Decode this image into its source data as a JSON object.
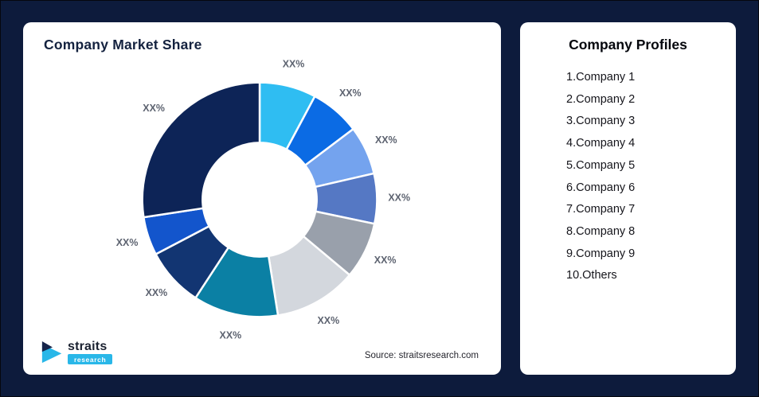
{
  "page": {
    "background": "#0D1B3C"
  },
  "chart_card": {
    "title": "Company Market Share",
    "source": "Source: straitsresearch.com",
    "logo": {
      "name": "straits",
      "sub": "research"
    }
  },
  "profiles_card": {
    "title": "Company Profiles",
    "items": [
      "1.Company 1",
      "2.Company 2",
      "3.Company 3",
      "4.Company 4",
      "5.Company 5",
      "6.Company 6",
      "7.Company 7",
      "8.Company 8",
      "9.Company 9",
      "10.Others"
    ]
  },
  "chart_data": {
    "type": "pie",
    "subtype": "donut",
    "title": "Company Market Share",
    "categories": [
      "Company 1",
      "Company 2",
      "Company 3",
      "Company 4",
      "Company 5",
      "Company 6",
      "Company 7",
      "Company 8",
      "Company 9",
      "Others"
    ],
    "values": [
      7.8,
      6.9,
      6.7,
      6.9,
      7.8,
      11.4,
      11.7,
      8.1,
      5.3,
      27.4
    ],
    "data_labels": [
      "XX%",
      "XX%",
      "XX%",
      "XX%",
      "XX%",
      "XX%",
      "XX%",
      "XX%",
      "XX%",
      "XX%"
    ],
    "colors": [
      "#2FBDF2",
      "#0B6BE4",
      "#74A3EE",
      "#5578C4",
      "#99A0AB",
      "#D3D7DD",
      "#0B80A4",
      "#123572",
      "#1355CC",
      "#0D2457"
    ],
    "legend": "none",
    "start_angle_deg": 0,
    "direction": "clockwise",
    "label_color": "#5d6370",
    "slice_border_color": "#ffffff"
  }
}
